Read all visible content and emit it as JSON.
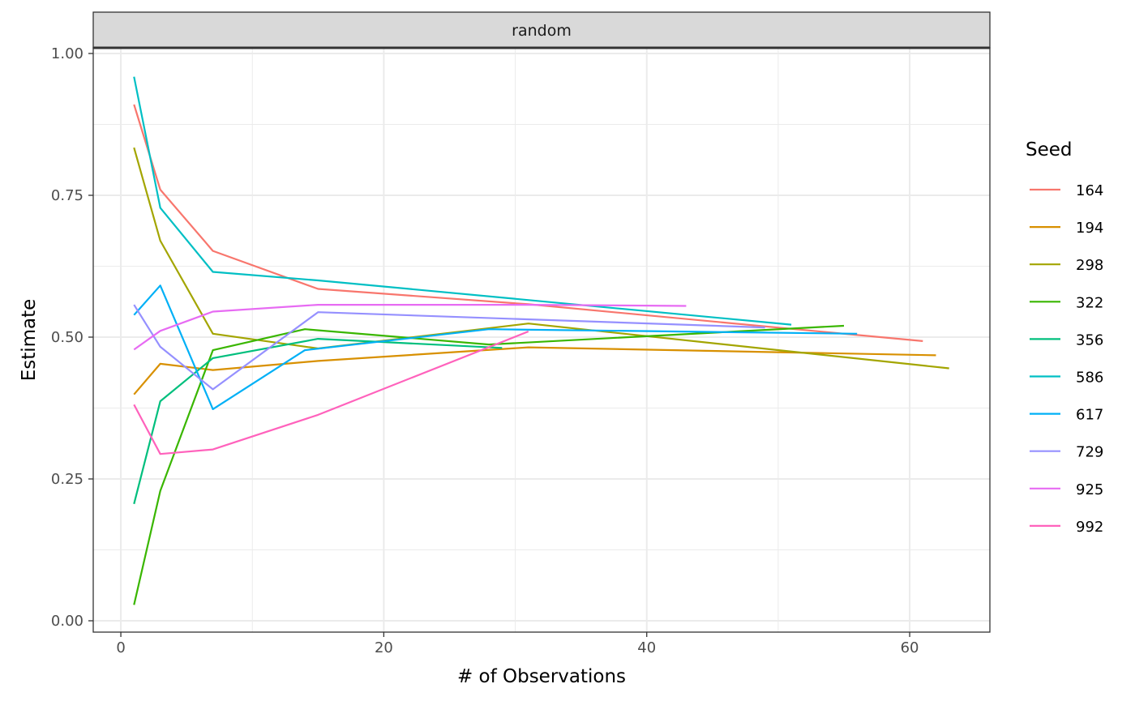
{
  "chart_data": {
    "type": "line",
    "panel_label": "random",
    "xlabel": "# of Observations",
    "ylabel": "Estimate",
    "xlim": [
      -2.1,
      66.1
    ],
    "ylim": [
      -0.02,
      1.01
    ],
    "x_ticks": [
      0,
      20,
      40,
      60
    ],
    "x_tick_labels": [
      "0",
      "20",
      "40",
      "60"
    ],
    "y_ticks": [
      0,
      0.25,
      0.5,
      0.75,
      1.0
    ],
    "y_tick_labels": [
      "0.00",
      "0.25",
      "0.50",
      "0.75",
      "1.00"
    ],
    "grid": true,
    "legend_title": "Seed",
    "legend_position": "right",
    "series": [
      {
        "name": "164",
        "color": "#F8766D",
        "points": [
          [
            1,
            0.91
          ],
          [
            3,
            0.76
          ],
          [
            7,
            0.652
          ],
          [
            15,
            0.585
          ],
          [
            31,
            0.558
          ],
          [
            61,
            0.493
          ]
        ]
      },
      {
        "name": "194",
        "color": "#D89000",
        "points": [
          [
            1,
            0.399
          ],
          [
            3,
            0.453
          ],
          [
            7,
            0.442
          ],
          [
            15,
            0.458
          ],
          [
            31,
            0.482
          ],
          [
            62,
            0.468
          ]
        ]
      },
      {
        "name": "298",
        "color": "#A3A500",
        "points": [
          [
            1,
            0.834
          ],
          [
            3,
            0.67
          ],
          [
            7,
            0.506
          ],
          [
            15,
            0.48
          ],
          [
            31,
            0.524
          ],
          [
            63,
            0.445
          ]
        ]
      },
      {
        "name": "322",
        "color": "#39B600",
        "points": [
          [
            1,
            0.028
          ],
          [
            3,
            0.229
          ],
          [
            7,
            0.477
          ],
          [
            14,
            0.514
          ],
          [
            28,
            0.487
          ],
          [
            55,
            0.52
          ]
        ]
      },
      {
        "name": "356",
        "color": "#00BF7D",
        "points": [
          [
            1,
            0.206
          ],
          [
            3,
            0.387
          ],
          [
            7,
            0.463
          ],
          [
            15,
            0.497
          ],
          [
            29,
            0.481
          ]
        ]
      },
      {
        "name": "586",
        "color": "#00BFC4",
        "points": [
          [
            1,
            0.959
          ],
          [
            3,
            0.728
          ],
          [
            7,
            0.615
          ],
          [
            15,
            0.6
          ],
          [
            51,
            0.522
          ]
        ]
      },
      {
        "name": "617",
        "color": "#00B0F6",
        "points": [
          [
            1,
            0.539
          ],
          [
            3,
            0.591
          ],
          [
            7,
            0.373
          ],
          [
            14,
            0.477
          ],
          [
            28,
            0.514
          ],
          [
            56,
            0.506
          ]
        ]
      },
      {
        "name": "729",
        "color": "#9590FF",
        "points": [
          [
            1,
            0.557
          ],
          [
            3,
            0.483
          ],
          [
            7,
            0.408
          ],
          [
            15,
            0.544
          ],
          [
            49,
            0.517
          ]
        ]
      },
      {
        "name": "925",
        "color": "#E76BF3",
        "points": [
          [
            1,
            0.478
          ],
          [
            3,
            0.511
          ],
          [
            7,
            0.545
          ],
          [
            15,
            0.557
          ],
          [
            31,
            0.557
          ],
          [
            43,
            0.555
          ]
        ]
      },
      {
        "name": "992",
        "color": "#FF62BC",
        "points": [
          [
            1,
            0.381
          ],
          [
            3,
            0.294
          ],
          [
            7,
            0.302
          ],
          [
            15,
            0.363
          ],
          [
            31,
            0.51
          ]
        ]
      }
    ]
  }
}
